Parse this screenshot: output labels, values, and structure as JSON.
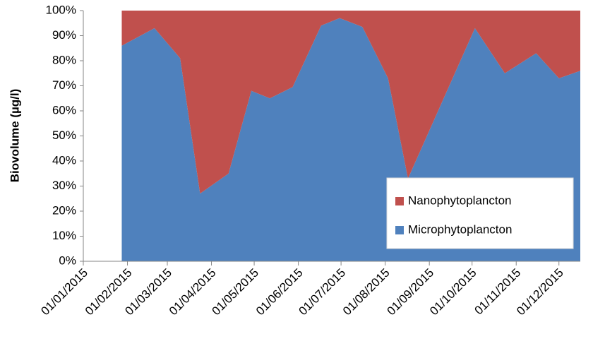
{
  "chart_data": {
    "type": "stacked_area",
    "y_label": "Biovolume (µg/l)",
    "x": [
      "2015-01-28",
      "2015-02-20",
      "2015-03-10",
      "2015-03-24",
      "2015-04-13",
      "2015-04-29",
      "2015-05-12",
      "2015-05-28",
      "2015-06-17",
      "2015-06-30",
      "2015-07-16",
      "2015-08-03",
      "2015-08-17",
      "2015-10-03",
      "2015-10-24",
      "2015-11-15",
      "2015-12-01",
      "2015-12-16"
    ],
    "series": [
      {
        "name": "Microphytoplancton",
        "color": "#4f81bd",
        "values": [
          86,
          93,
          81,
          27,
          35,
          68,
          65,
          69.5,
          94,
          97,
          93.5,
          73,
          33,
          93,
          75,
          83,
          73,
          76
        ]
      },
      {
        "name": "Nanophytoplancton",
        "color": "#c0504d",
        "values": [
          14,
          7,
          19,
          73,
          65,
          32,
          35,
          30.5,
          6,
          3,
          6.5,
          27,
          67,
          7,
          25,
          17,
          27,
          24
        ]
      }
    ],
    "xlim": [
      "2015-01-01",
      "2015-12-16"
    ],
    "xticks": [
      {
        "value": "2015-01-01",
        "label": "01/01/2015"
      },
      {
        "value": "2015-02-01",
        "label": "01/02/2015"
      },
      {
        "value": "2015-03-01",
        "label": "01/03/2015"
      },
      {
        "value": "2015-04-01",
        "label": "01/04/2015"
      },
      {
        "value": "2015-05-01",
        "label": "01/05/2015"
      },
      {
        "value": "2015-06-01",
        "label": "01/06/2015"
      },
      {
        "value": "2015-07-01",
        "label": "01/07/2015"
      },
      {
        "value": "2015-08-01",
        "label": "01/08/2015"
      },
      {
        "value": "2015-09-01",
        "label": "01/09/2015"
      },
      {
        "value": "2015-10-01",
        "label": "01/10/2015"
      },
      {
        "value": "2015-11-01",
        "label": "01/11/2015"
      },
      {
        "value": "2015-12-01",
        "label": "01/12/2015"
      }
    ],
    "ylim": [
      0,
      100
    ],
    "yticks": [
      {
        "value": 0,
        "label": "0%"
      },
      {
        "value": 10,
        "label": "10%"
      },
      {
        "value": 20,
        "label": "20%"
      },
      {
        "value": 30,
        "label": "30%"
      },
      {
        "value": 40,
        "label": "40%"
      },
      {
        "value": 50,
        "label": "50%"
      },
      {
        "value": 60,
        "label": "60%"
      },
      {
        "value": 70,
        "label": "70%"
      },
      {
        "value": 80,
        "label": "80%"
      },
      {
        "value": 90,
        "label": "90%"
      },
      {
        "value": 100,
        "label": "100%"
      }
    ],
    "legend": "lower right"
  }
}
